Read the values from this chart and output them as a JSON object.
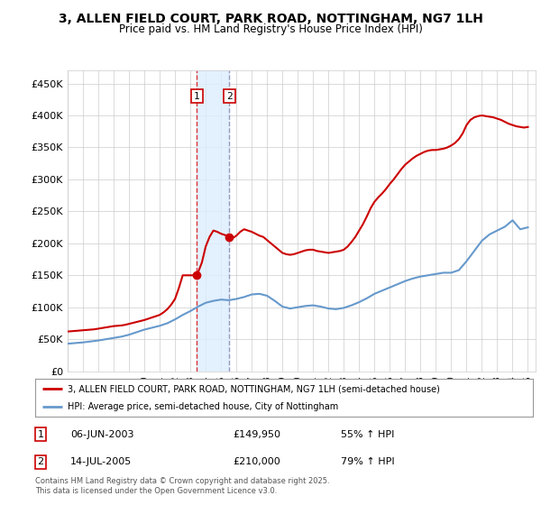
{
  "title": "3, ALLEN FIELD COURT, PARK ROAD, NOTTINGHAM, NG7 1LH",
  "subtitle": "Price paid vs. HM Land Registry's House Price Index (HPI)",
  "ylabel_ticks": [
    "£0",
    "£50K",
    "£100K",
    "£150K",
    "£200K",
    "£250K",
    "£300K",
    "£350K",
    "£400K",
    "£450K"
  ],
  "ytick_vals": [
    0,
    50000,
    100000,
    150000,
    200000,
    250000,
    300000,
    350000,
    400000,
    450000
  ],
  "ylim": [
    0,
    470000
  ],
  "xlim_start": 1995.0,
  "xlim_end": 2025.5,
  "transaction_dates": [
    2003.43,
    2005.54
  ],
  "transaction_prices": [
    149950,
    210000
  ],
  "transaction_labels": [
    "1",
    "2"
  ],
  "transaction_info": [
    {
      "label": "1",
      "date": "06-JUN-2003",
      "price": "£149,950",
      "hpi": "55% ↑ HPI"
    },
    {
      "label": "2",
      "date": "14-JUL-2005",
      "price": "£210,000",
      "hpi": "79% ↑ HPI"
    }
  ],
  "legend_line1": "3, ALLEN FIELD COURT, PARK ROAD, NOTTINGHAM, NG7 1LH (semi-detached house)",
  "legend_line2": "HPI: Average price, semi-detached house, City of Nottingham",
  "footer": "Contains HM Land Registry data © Crown copyright and database right 2025.\nThis data is licensed under the Open Government Licence v3.0.",
  "line_color_red": "#cc0000",
  "line_color_blue": "#6699cc",
  "bg_color": "#ffffff",
  "grid_color": "#cccccc",
  "highlight_fill": "#ddeeff",
  "vline_color": "#dd3333",
  "vline2_color": "#9999bb",
  "xtick_years": [
    1995,
    1996,
    1997,
    1998,
    1999,
    2000,
    2001,
    2002,
    2003,
    2004,
    2005,
    2006,
    2007,
    2008,
    2009,
    2010,
    2011,
    2012,
    2013,
    2014,
    2015,
    2016,
    2017,
    2018,
    2019,
    2020,
    2021,
    2022,
    2023,
    2024,
    2025
  ],
  "hpi_data_x": [
    1995.0,
    1995.5,
    1996.0,
    1996.5,
    1997.0,
    1997.5,
    1998.0,
    1998.5,
    1999.0,
    1999.5,
    2000.0,
    2000.5,
    2001.0,
    2001.5,
    2002.0,
    2002.5,
    2003.0,
    2003.5,
    2004.0,
    2004.5,
    2005.0,
    2005.5,
    2006.0,
    2006.5,
    2007.0,
    2007.5,
    2008.0,
    2008.5,
    2009.0,
    2009.5,
    2010.0,
    2010.5,
    2011.0,
    2011.5,
    2012.0,
    2012.5,
    2013.0,
    2013.5,
    2014.0,
    2014.5,
    2015.0,
    2015.5,
    2016.0,
    2016.5,
    2017.0,
    2017.5,
    2018.0,
    2018.5,
    2019.0,
    2019.5,
    2020.0,
    2020.5,
    2021.0,
    2021.5,
    2022.0,
    2022.5,
    2023.0,
    2023.5,
    2024.0,
    2024.5,
    2025.0
  ],
  "hpi_data_y": [
    43000,
    44000,
    45000,
    46500,
    48000,
    50000,
    52000,
    54000,
    57000,
    61000,
    65000,
    68000,
    71000,
    75000,
    81000,
    88000,
    94000,
    101000,
    107000,
    110000,
    112000,
    111000,
    113000,
    116000,
    120000,
    121000,
    118000,
    110000,
    101000,
    98000,
    100000,
    102000,
    103000,
    101000,
    98000,
    97000,
    99000,
    103000,
    108000,
    114000,
    121000,
    126000,
    131000,
    136000,
    141000,
    145000,
    148000,
    150000,
    152000,
    154000,
    154000,
    158000,
    172000,
    188000,
    204000,
    214000,
    220000,
    226000,
    236000,
    222000,
    225000
  ],
  "price_data_x": [
    1995.0,
    1995.25,
    1995.5,
    1995.75,
    1996.0,
    1996.25,
    1996.5,
    1996.75,
    1997.0,
    1997.25,
    1997.5,
    1997.75,
    1998.0,
    1998.25,
    1998.5,
    1998.75,
    1999.0,
    1999.25,
    1999.5,
    1999.75,
    2000.0,
    2000.25,
    2000.5,
    2000.75,
    2001.0,
    2001.25,
    2001.5,
    2001.75,
    2002.0,
    2002.25,
    2002.5,
    2002.75,
    2003.0,
    2003.25,
    2003.43,
    2003.75,
    2004.0,
    2004.25,
    2004.5,
    2004.75,
    2005.0,
    2005.25,
    2005.54,
    2005.75,
    2006.0,
    2006.25,
    2006.5,
    2006.75,
    2007.0,
    2007.25,
    2007.5,
    2007.75,
    2008.0,
    2008.25,
    2008.5,
    2008.75,
    2009.0,
    2009.25,
    2009.5,
    2009.75,
    2010.0,
    2010.25,
    2010.5,
    2010.75,
    2011.0,
    2011.25,
    2011.5,
    2011.75,
    2012.0,
    2012.25,
    2012.5,
    2012.75,
    2013.0,
    2013.25,
    2013.5,
    2013.75,
    2014.0,
    2014.25,
    2014.5,
    2014.75,
    2015.0,
    2015.25,
    2015.5,
    2015.75,
    2016.0,
    2016.25,
    2016.5,
    2016.75,
    2017.0,
    2017.25,
    2017.5,
    2017.75,
    2018.0,
    2018.25,
    2018.5,
    2018.75,
    2019.0,
    2019.25,
    2019.5,
    2019.75,
    2020.0,
    2020.25,
    2020.5,
    2020.75,
    2021.0,
    2021.25,
    2021.5,
    2021.75,
    2022.0,
    2022.25,
    2022.5,
    2022.75,
    2023.0,
    2023.25,
    2023.5,
    2023.75,
    2024.0,
    2024.25,
    2024.5,
    2024.75,
    2025.0
  ],
  "price_data_y": [
    62000,
    62500,
    63000,
    63500,
    64000,
    64500,
    65000,
    65500,
    66500,
    67500,
    68500,
    69500,
    70500,
    71000,
    71500,
    72500,
    74000,
    75500,
    77000,
    78500,
    80000,
    82000,
    84000,
    86000,
    88000,
    92000,
    97000,
    104000,
    113000,
    130000,
    149950,
    149950,
    149950,
    149950,
    149950,
    170000,
    195000,
    210000,
    220000,
    218000,
    215000,
    213000,
    210000,
    208000,
    212000,
    218000,
    222000,
    220000,
    218000,
    215000,
    212000,
    210000,
    205000,
    200000,
    195000,
    190000,
    185000,
    183000,
    182000,
    183000,
    185000,
    187000,
    189000,
    190000,
    190000,
    188000,
    187000,
    186000,
    185000,
    186000,
    187000,
    188000,
    190000,
    195000,
    202000,
    210000,
    220000,
    230000,
    242000,
    255000,
    265000,
    272000,
    278000,
    285000,
    293000,
    300000,
    308000,
    316000,
    323000,
    328000,
    333000,
    337000,
    340000,
    343000,
    345000,
    346000,
    346000,
    347000,
    348000,
    350000,
    353000,
    357000,
    363000,
    372000,
    385000,
    393000,
    397000,
    399000,
    400000,
    399000,
    398000,
    397000,
    395000,
    393000,
    390000,
    387000,
    385000,
    383000,
    382000,
    381000,
    382000
  ]
}
